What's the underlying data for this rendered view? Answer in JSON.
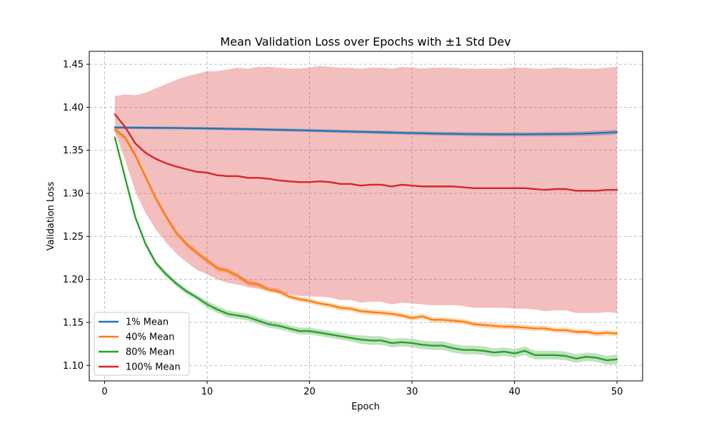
{
  "chart_data": {
    "type": "line",
    "title": "Mean Validation Loss over Epochs with ±1 Std Dev",
    "xlabel": "Epoch",
    "ylabel": "Validation Loss",
    "xlim": [
      -1.5,
      52.5
    ],
    "ylim": [
      1.082,
      1.465
    ],
    "xticks": [
      0,
      10,
      20,
      30,
      40,
      50
    ],
    "yticks": [
      1.1,
      1.15,
      1.2,
      1.25,
      1.3,
      1.35,
      1.4,
      1.45
    ],
    "xtick_labels": [
      "0",
      "10",
      "20",
      "30",
      "40",
      "50"
    ],
    "ytick_labels": [
      "1.10",
      "1.15",
      "1.20",
      "1.25",
      "1.30",
      "1.35",
      "1.40",
      "1.45"
    ],
    "grid": true,
    "legend_position": "lower-left",
    "epochs": [
      1,
      2,
      3,
      4,
      5,
      6,
      7,
      8,
      9,
      10,
      11,
      12,
      13,
      14,
      15,
      16,
      17,
      18,
      19,
      20,
      21,
      22,
      23,
      24,
      25,
      26,
      27,
      28,
      29,
      30,
      31,
      32,
      33,
      34,
      35,
      36,
      37,
      38,
      39,
      40,
      41,
      42,
      43,
      44,
      45,
      46,
      47,
      48,
      49,
      50
    ],
    "series": [
      {
        "name": "1% Mean",
        "color": "#1f77b4",
        "mean": [
          1.3765,
          1.3764,
          1.3763,
          1.3762,
          1.3761,
          1.376,
          1.3759,
          1.3757,
          1.3756,
          1.3754,
          1.3752,
          1.375,
          1.3748,
          1.3746,
          1.3744,
          1.3741,
          1.3738,
          1.3736,
          1.3733,
          1.373,
          1.3727,
          1.3724,
          1.3721,
          1.3718,
          1.3715,
          1.3712,
          1.3709,
          1.3706,
          1.3703,
          1.37,
          1.3698,
          1.3695,
          1.3693,
          1.3691,
          1.3689,
          1.3688,
          1.3687,
          1.3686,
          1.3686,
          1.3686,
          1.3686,
          1.3687,
          1.3688,
          1.3689,
          1.369,
          1.3692,
          1.3695,
          1.3699,
          1.3704,
          1.3712
        ],
        "std": [
          0.0015,
          0.0015,
          0.0015,
          0.0015,
          0.0016,
          0.0016,
          0.0016,
          0.0016,
          0.0016,
          0.0017,
          0.0017,
          0.0017,
          0.0017,
          0.0017,
          0.0018,
          0.0018,
          0.0018,
          0.0018,
          0.0018,
          0.0019,
          0.0019,
          0.0019,
          0.002,
          0.002,
          0.002,
          0.002,
          0.0021,
          0.0021,
          0.0021,
          0.0022,
          0.0022,
          0.0022,
          0.0023,
          0.0023,
          0.0023,
          0.0024,
          0.0024,
          0.0024,
          0.0025,
          0.0025,
          0.0025,
          0.0026,
          0.0026,
          0.0026,
          0.0027,
          0.0027,
          0.0028,
          0.0028,
          0.0029,
          0.003
        ]
      },
      {
        "name": "40% Mean",
        "color": "#ff7f0e",
        "mean": [
          1.374,
          1.365,
          1.344,
          1.319,
          1.294,
          1.273,
          1.254,
          1.241,
          1.231,
          1.222,
          1.213,
          1.21,
          1.204,
          1.196,
          1.194,
          1.188,
          1.186,
          1.18,
          1.177,
          1.175,
          1.172,
          1.17,
          1.167,
          1.166,
          1.163,
          1.162,
          1.161,
          1.16,
          1.158,
          1.155,
          1.157,
          1.153,
          1.153,
          1.152,
          1.151,
          1.148,
          1.147,
          1.146,
          1.145,
          1.145,
          1.144,
          1.143,
          1.143,
          1.141,
          1.141,
          1.139,
          1.139,
          1.137,
          1.138,
          1.137
        ],
        "std": [
          0.003,
          0.003,
          0.003,
          0.003,
          0.003,
          0.003,
          0.003,
          0.003,
          0.003,
          0.003,
          0.003,
          0.003,
          0.003,
          0.003,
          0.003,
          0.003,
          0.003,
          0.003,
          0.003,
          0.003,
          0.003,
          0.003,
          0.003,
          0.003,
          0.003,
          0.003,
          0.003,
          0.003,
          0.003,
          0.003,
          0.003,
          0.003,
          0.003,
          0.003,
          0.003,
          0.003,
          0.003,
          0.003,
          0.003,
          0.003,
          0.003,
          0.003,
          0.003,
          0.003,
          0.003,
          0.003,
          0.003,
          0.003,
          0.003,
          0.003
        ]
      },
      {
        "name": "80% Mean",
        "color": "#2ca02c",
        "mean": [
          1.365,
          1.318,
          1.272,
          1.241,
          1.219,
          1.206,
          1.195,
          1.186,
          1.179,
          1.171,
          1.165,
          1.16,
          1.158,
          1.156,
          1.152,
          1.148,
          1.146,
          1.143,
          1.14,
          1.14,
          1.138,
          1.136,
          1.134,
          1.132,
          1.13,
          1.129,
          1.129,
          1.126,
          1.127,
          1.126,
          1.124,
          1.123,
          1.123,
          1.12,
          1.118,
          1.118,
          1.117,
          1.115,
          1.116,
          1.114,
          1.117,
          1.112,
          1.112,
          1.112,
          1.111,
          1.108,
          1.11,
          1.109,
          1.106,
          1.107
        ],
        "std": [
          0.003,
          0.003,
          0.003,
          0.003,
          0.003,
          0.003,
          0.003,
          0.003,
          0.003,
          0.004,
          0.004,
          0.004,
          0.004,
          0.004,
          0.004,
          0.004,
          0.004,
          0.004,
          0.004,
          0.004,
          0.004,
          0.004,
          0.004,
          0.004,
          0.005,
          0.005,
          0.005,
          0.005,
          0.005,
          0.005,
          0.005,
          0.005,
          0.005,
          0.005,
          0.005,
          0.005,
          0.005,
          0.005,
          0.005,
          0.005,
          0.005,
          0.005,
          0.005,
          0.005,
          0.005,
          0.005,
          0.005,
          0.005,
          0.005,
          0.006
        ]
      },
      {
        "name": "100% Mean",
        "color": "#d62728",
        "mean": [
          1.392,
          1.377,
          1.358,
          1.347,
          1.34,
          1.335,
          1.331,
          1.328,
          1.325,
          1.324,
          1.321,
          1.32,
          1.32,
          1.318,
          1.318,
          1.317,
          1.315,
          1.314,
          1.313,
          1.313,
          1.314,
          1.313,
          1.311,
          1.311,
          1.309,
          1.31,
          1.31,
          1.308,
          1.31,
          1.309,
          1.308,
          1.308,
          1.308,
          1.308,
          1.307,
          1.306,
          1.306,
          1.306,
          1.306,
          1.306,
          1.306,
          1.305,
          1.304,
          1.305,
          1.305,
          1.303,
          1.303,
          1.303,
          1.304,
          1.304
        ],
        "std": [
          0.021,
          0.038,
          0.056,
          0.07,
          0.082,
          0.092,
          0.101,
          0.108,
          0.114,
          0.118,
          0.121,
          0.124,
          0.126,
          0.127,
          0.129,
          0.13,
          0.131,
          0.131,
          0.132,
          0.133,
          0.134,
          0.134,
          0.135,
          0.135,
          0.136,
          0.136,
          0.136,
          0.137,
          0.137,
          0.137,
          0.137,
          0.138,
          0.138,
          0.138,
          0.138,
          0.139,
          0.139,
          0.139,
          0.139,
          0.14,
          0.14,
          0.14,
          0.141,
          0.141,
          0.141,
          0.142,
          0.142,
          0.142,
          0.142,
          0.143
        ]
      }
    ]
  }
}
